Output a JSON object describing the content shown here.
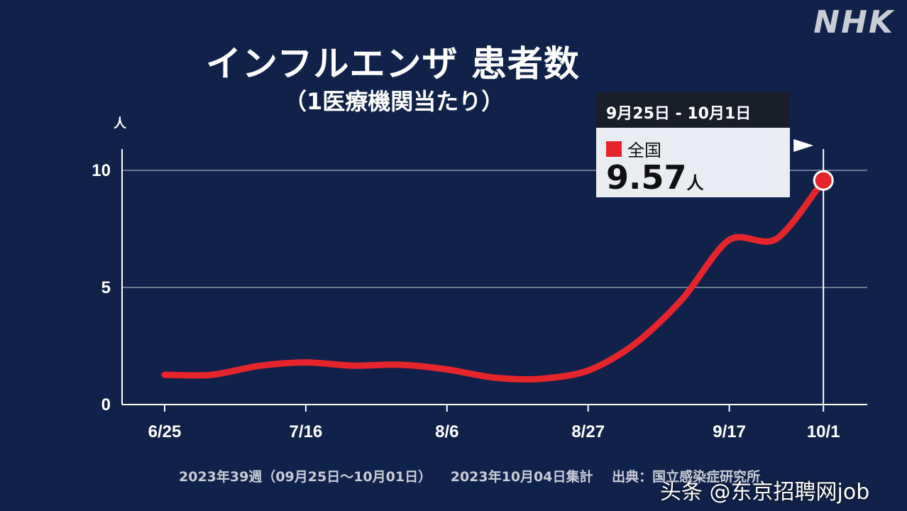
{
  "logo": "NHK",
  "title": "インフルエンザ 患者数",
  "subtitle": "（1医療機関当たり）",
  "tooltip": {
    "period": "9月25日 - 10月1日",
    "series": "全国",
    "value": "9.57",
    "unit": "人"
  },
  "footer": {
    "week": "2023年39週（09月25日～10月01日）",
    "aggregated": "2023年10月04日集計",
    "source": "出典：国立感染症研究所"
  },
  "watermark": "头条 @东京招聘网job",
  "colors": {
    "background": "#10224a",
    "line": "#e5252b",
    "grid": "#8a93a8"
  },
  "chart_data": {
    "type": "line",
    "title": "インフルエンザ 患者数（1医療機関当たり）",
    "ylabel": "人",
    "xlabel": "",
    "ylim": [
      0,
      11
    ],
    "yticks": [
      0,
      5,
      10
    ],
    "xtick_labels": [
      "6/25",
      "7/16",
      "8/6",
      "8/27",
      "9/17",
      "10/1"
    ],
    "xtick_index": [
      0,
      3,
      6,
      9,
      12,
      14
    ],
    "x": [
      "6/25",
      "7/2",
      "7/9",
      "7/16",
      "7/23",
      "7/30",
      "8/6",
      "8/13",
      "8/20",
      "8/27",
      "9/3",
      "9/10",
      "9/17",
      "9/24",
      "10/1"
    ],
    "series": [
      {
        "name": "全国",
        "values": [
          1.27,
          1.27,
          1.65,
          1.8,
          1.66,
          1.7,
          1.5,
          1.15,
          1.1,
          1.45,
          2.6,
          4.5,
          7.03,
          7.07,
          9.57
        ]
      }
    ],
    "grid": true,
    "highlight_index": 14
  }
}
